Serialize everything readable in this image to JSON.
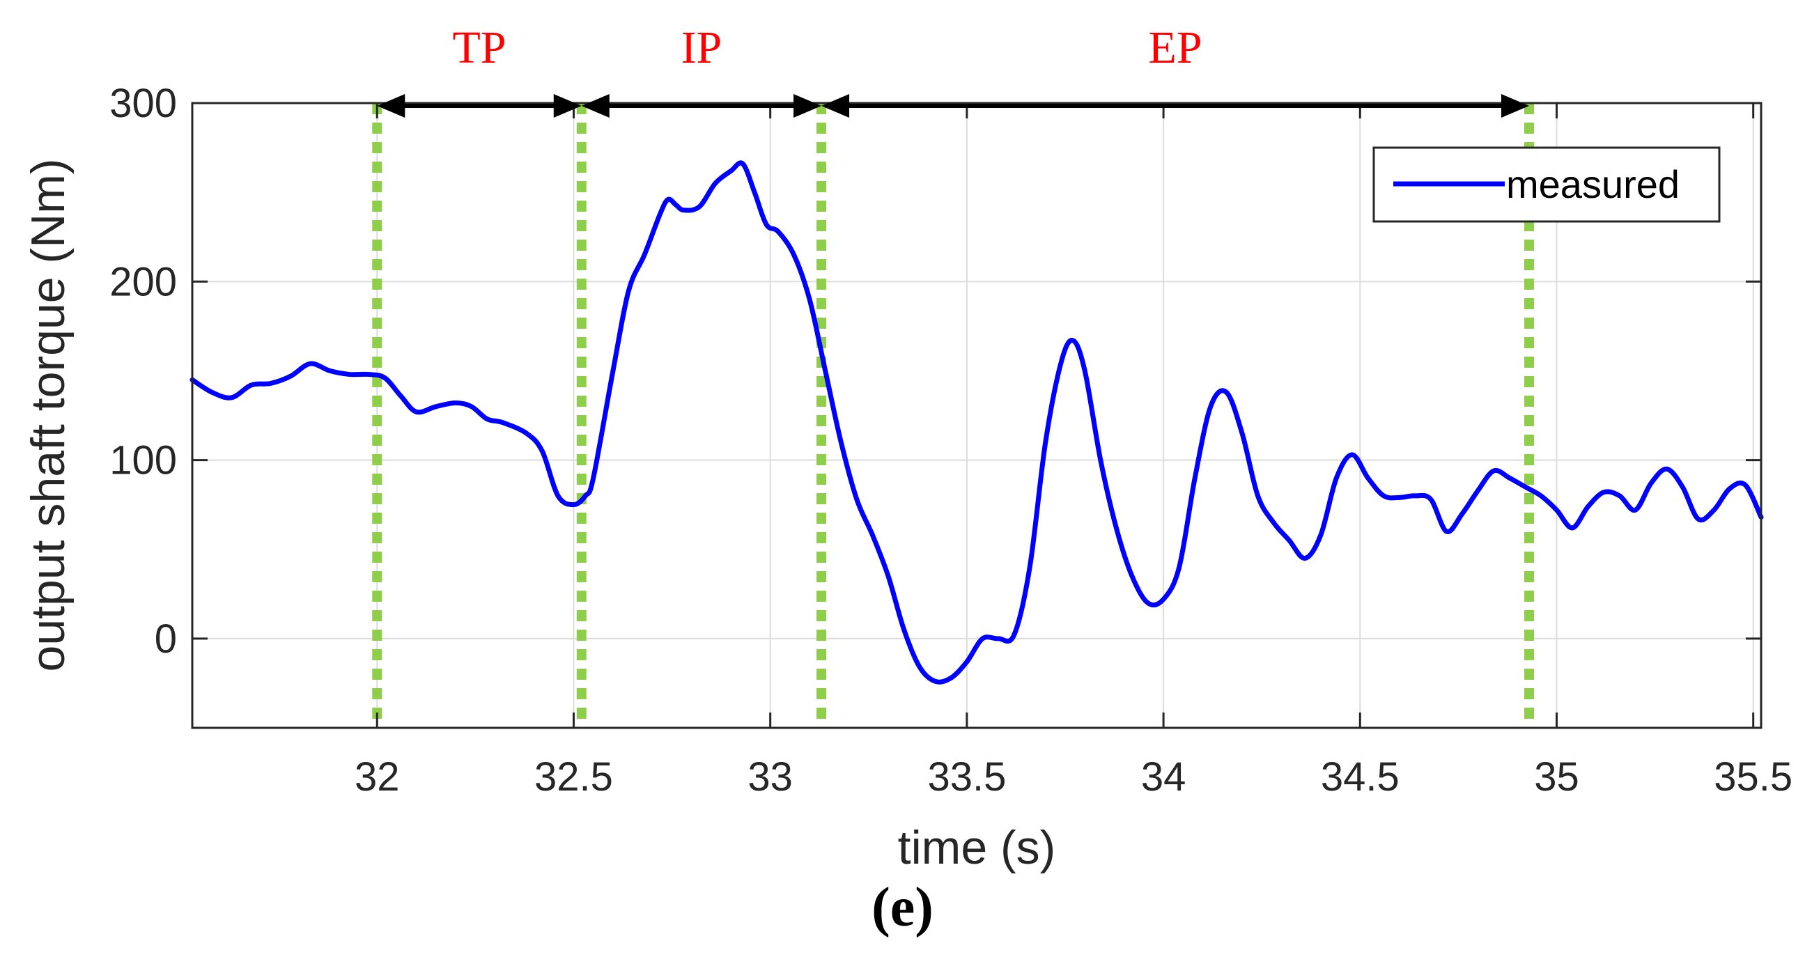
{
  "caption": "(e)",
  "chart_data": {
    "type": "line",
    "title": "",
    "xlabel": "time (s)",
    "ylabel": "output shaft torque (Nm)",
    "xlim": [
      31.53,
      35.52
    ],
    "ylim": [
      -50,
      300
    ],
    "xticks": [
      32,
      32.5,
      33,
      33.5,
      34,
      34.5,
      35,
      35.5
    ],
    "xtick_labels": [
      "32",
      "32.5",
      "33",
      "33.5",
      "34",
      "34.5",
      "35",
      "35.5"
    ],
    "yticks": [
      0,
      100,
      200,
      300
    ],
    "ytick_labels": [
      "0",
      "100",
      "200",
      "300"
    ],
    "grid": true,
    "legend_position": "top-right",
    "colors": {
      "series": "#0000ff",
      "markers": "#8fce4a",
      "phase_text": "#ff0000",
      "arrows": "#000000"
    },
    "series": [
      {
        "name": "measured",
        "x": [
          31.53,
          31.58,
          31.63,
          31.68,
          31.73,
          31.78,
          31.83,
          31.88,
          31.93,
          31.98,
          32.02,
          32.06,
          32.1,
          32.15,
          32.2,
          32.24,
          32.28,
          32.32,
          32.38,
          32.42,
          32.46,
          32.5,
          32.53,
          32.55,
          32.6,
          32.64,
          32.68,
          32.72,
          32.74,
          32.76,
          32.78,
          32.82,
          32.86,
          32.9,
          32.93,
          32.96,
          32.99,
          33.02,
          33.06,
          33.1,
          33.14,
          33.18,
          33.22,
          33.26,
          33.3,
          33.34,
          33.38,
          33.42,
          33.46,
          33.5,
          33.54,
          33.58,
          33.62,
          33.66,
          33.7,
          33.74,
          33.77,
          33.8,
          33.84,
          33.88,
          33.92,
          33.96,
          34.0,
          34.04,
          34.08,
          34.12,
          34.16,
          34.2,
          34.24,
          34.28,
          34.32,
          34.36,
          34.4,
          34.44,
          34.48,
          34.52,
          34.56,
          34.6,
          34.64,
          34.68,
          34.72,
          34.76,
          34.8,
          34.84,
          34.88,
          34.92,
          34.96,
          35.0,
          35.04,
          35.08,
          35.12,
          35.16,
          35.2,
          35.24,
          35.28,
          35.32,
          35.36,
          35.4,
          35.44,
          35.48,
          35.52
        ],
        "y": [
          145,
          138,
          135,
          142,
          143,
          147,
          154,
          150,
          148,
          148,
          146,
          136,
          127,
          130,
          132,
          130,
          123,
          121,
          115,
          105,
          80,
          75,
          80,
          90,
          150,
          195,
          215,
          238,
          246,
          243,
          240,
          242,
          255,
          262,
          266,
          250,
          232,
          228,
          215,
          190,
          150,
          110,
          78,
          58,
          35,
          5,
          -16,
          -24,
          -22,
          -13,
          0,
          0,
          2,
          40,
          110,
          155,
          167,
          150,
          100,
          62,
          35,
          20,
          22,
          40,
          90,
          130,
          138,
          115,
          80,
          65,
          55,
          45,
          58,
          90,
          103,
          90,
          80,
          79,
          80,
          78,
          60,
          70,
          83,
          94,
          90,
          85,
          80,
          72,
          62,
          74,
          82,
          80,
          72,
          87,
          95,
          85,
          67,
          72,
          84,
          86,
          68
        ]
      }
    ],
    "phase_markers_x": [
      32.0,
      32.52,
      33.13,
      34.93
    ],
    "phases": [
      {
        "label": "TP",
        "from": 32.0,
        "to": 32.52
      },
      {
        "label": "IP",
        "from": 32.52,
        "to": 33.13
      },
      {
        "label": "EP",
        "from": 33.13,
        "to": 34.93
      }
    ]
  }
}
